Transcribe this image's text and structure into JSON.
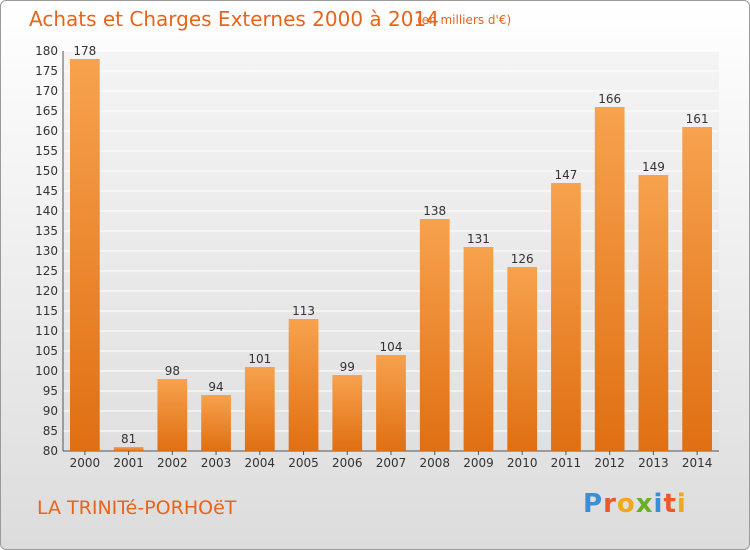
{
  "header": {
    "title": "Achats et Charges Externes 2000 à 2014",
    "unit": "(en milliers d'€)"
  },
  "footer": {
    "commune": "LA TRINITé-PORHOëT",
    "logo_letters": [
      {
        "ch": "P",
        "color": "#3a8fd6"
      },
      {
        "ch": "r",
        "color": "#e85a2a"
      },
      {
        "ch": "o",
        "color": "#f2a81d"
      },
      {
        "ch": "x",
        "color": "#6ab023"
      },
      {
        "ch": "i",
        "color": "#3a8fd6"
      },
      {
        "ch": "t",
        "color": "#e85a2a"
      },
      {
        "ch": "i",
        "color": "#f2a81d"
      }
    ]
  },
  "chart_data": {
    "type": "bar",
    "title": "Achats et Charges Externes 2000 à 2014",
    "subtitle": "(en milliers d'€)",
    "xlabel": "",
    "ylabel": "",
    "categories": [
      "2000",
      "2001",
      "2002",
      "2003",
      "2004",
      "2005",
      "2006",
      "2007",
      "2008",
      "2009",
      "2010",
      "2011",
      "2012",
      "2013",
      "2014"
    ],
    "values": [
      178,
      81,
      98,
      94,
      101,
      113,
      99,
      104,
      138,
      131,
      126,
      147,
      166,
      149,
      161
    ],
    "ylim": [
      80,
      180
    ],
    "yticks": [
      80,
      85,
      90,
      95,
      100,
      105,
      110,
      115,
      120,
      125,
      130,
      135,
      140,
      145,
      150,
      155,
      160,
      165,
      170,
      175,
      180
    ],
    "grid": true,
    "bar_color": "#f08c2e",
    "data_labels": true
  }
}
